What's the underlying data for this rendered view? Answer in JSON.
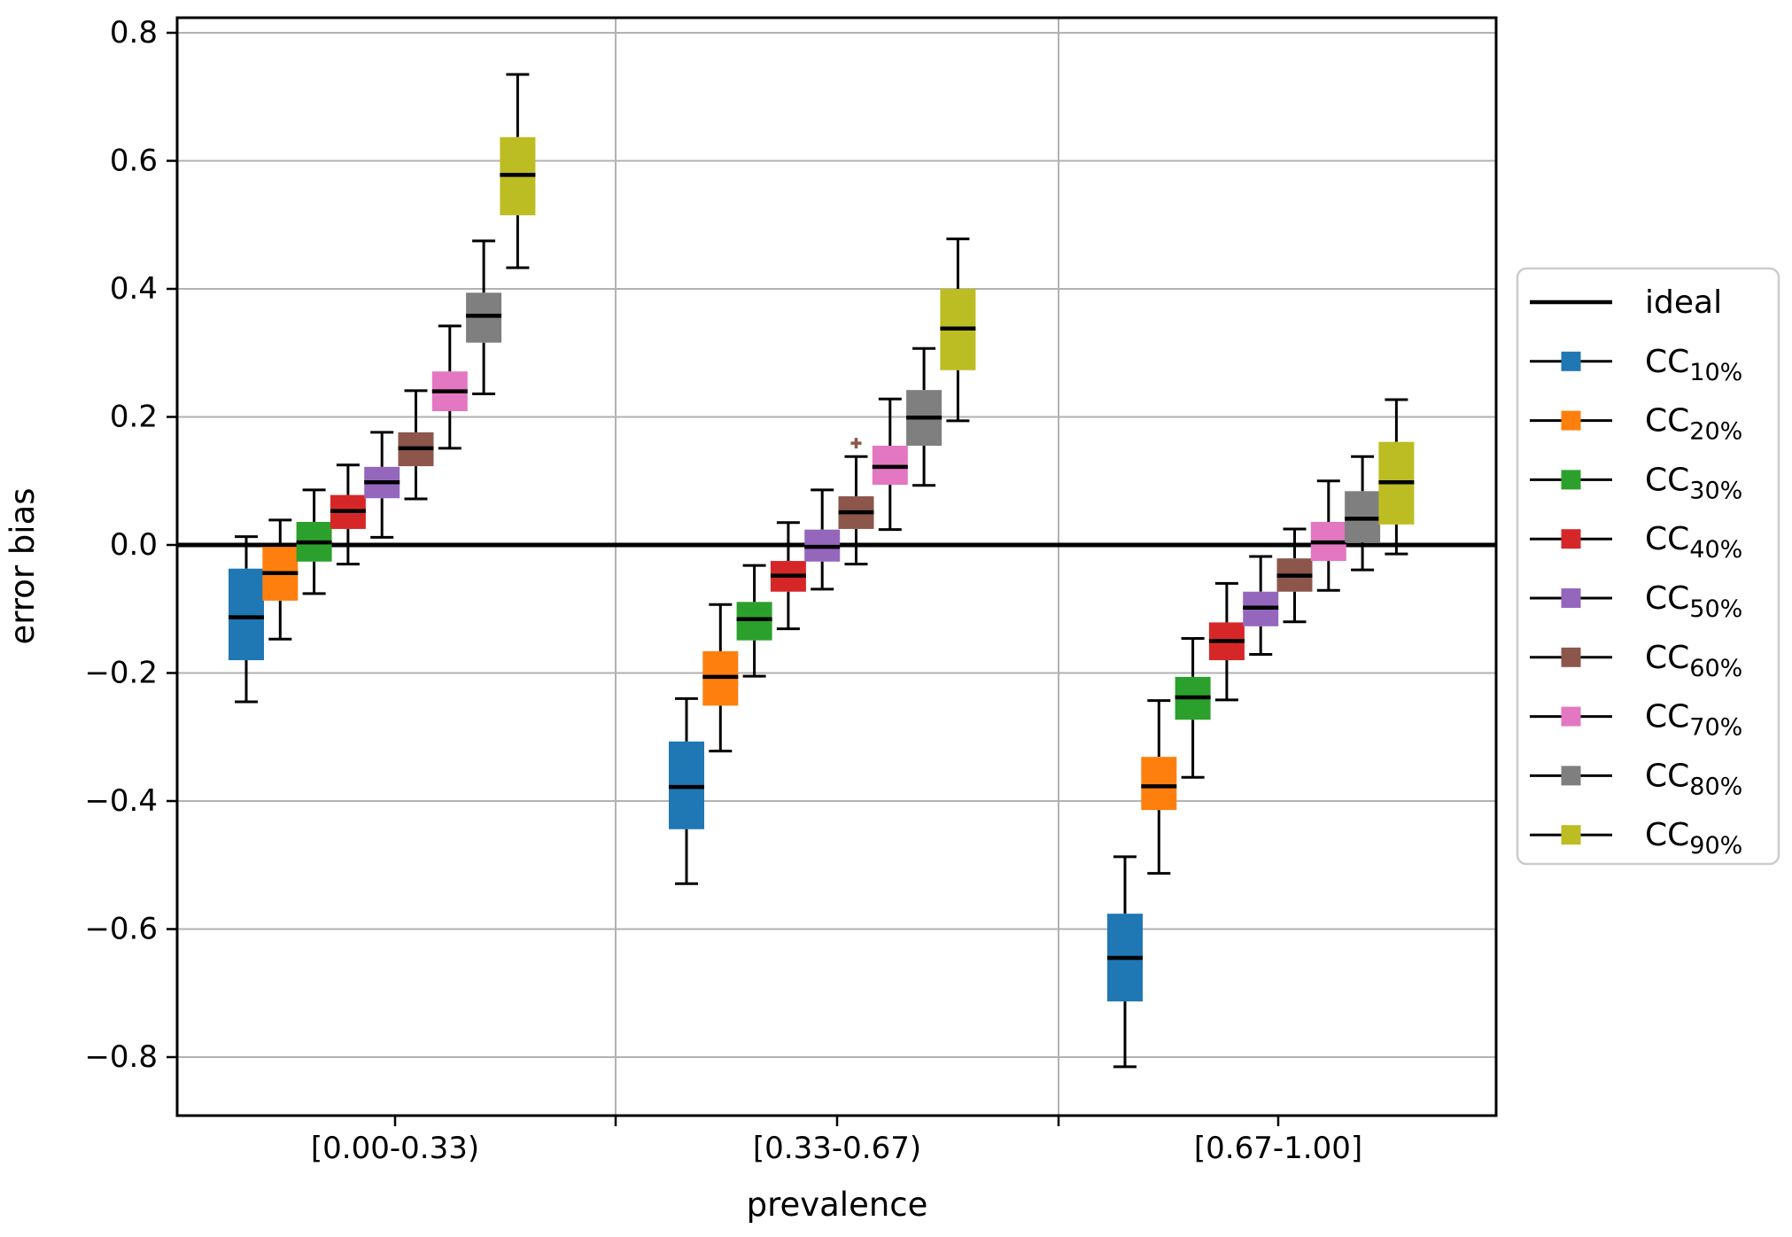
{
  "figure": {
    "background": "#ffffff",
    "grid_color": "#b2b2b2",
    "spine_color": "#000000",
    "text_color": "#000000"
  },
  "chart_data": {
    "type": "grouped_boxplot",
    "title": "",
    "xlabel": "prevalence",
    "ylabel": "error bias",
    "ylim": [
      -0.891,
      0.823
    ],
    "grid": "horizontal-on",
    "legend_position": "outside-right",
    "yticks": [
      {
        "value": 0.8,
        "label": "0.8"
      },
      {
        "value": 0.6,
        "label": "0.6"
      },
      {
        "value": 0.4,
        "label": "0.4"
      },
      {
        "value": 0.2,
        "label": "0.2"
      },
      {
        "value": 0.0,
        "label": "0.0"
      },
      {
        "value": -0.2,
        "label": "−0.2"
      },
      {
        "value": -0.4,
        "label": "−0.4"
      },
      {
        "value": -0.6,
        "label": "−0.6"
      },
      {
        "value": -0.8,
        "label": "−0.8"
      }
    ],
    "ideal_line": {
      "label": "ideal",
      "y": 0.0,
      "color": "#000000"
    },
    "categories": [
      "[0.00-0.33)",
      "[0.33-0.67)",
      "[0.67-1.00]"
    ],
    "series": [
      {
        "name": "CC10%",
        "label_main": "CC",
        "label_sub": "10%",
        "color": "#1f77b4"
      },
      {
        "name": "CC20%",
        "label_main": "CC",
        "label_sub": "20%",
        "color": "#ff7f0e"
      },
      {
        "name": "CC30%",
        "label_main": "CC",
        "label_sub": "30%",
        "color": "#2ca02c"
      },
      {
        "name": "CC40%",
        "label_main": "CC",
        "label_sub": "40%",
        "color": "#d62728"
      },
      {
        "name": "CC50%",
        "label_main": "CC",
        "label_sub": "50%",
        "color": "#9467bd"
      },
      {
        "name": "CC60%",
        "label_main": "CC",
        "label_sub": "60%",
        "color": "#8c564b"
      },
      {
        "name": "CC70%",
        "label_main": "CC",
        "label_sub": "70%",
        "color": "#e377c2"
      },
      {
        "name": "CC80%",
        "label_main": "CC",
        "label_sub": "80%",
        "color": "#7f7f7f"
      },
      {
        "name": "CC90%",
        "label_main": "CC",
        "label_sub": "90%",
        "color": "#bcbd22"
      }
    ],
    "boxes": [
      {
        "category": "[0.00-0.33)",
        "items": [
          {
            "series": "CC10%",
            "whisker_low": -0.245,
            "q1": -0.18,
            "median": -0.113,
            "q3": -0.037,
            "whisker_high": 0.013,
            "outliers": []
          },
          {
            "series": "CC20%",
            "whisker_low": -0.147,
            "q1": -0.087,
            "median": -0.044,
            "q3": -0.003,
            "whisker_high": 0.039,
            "outliers": []
          },
          {
            "series": "CC30%",
            "whisker_low": -0.076,
            "q1": -0.026,
            "median": 0.004,
            "q3": 0.036,
            "whisker_high": 0.086,
            "outliers": []
          },
          {
            "series": "CC40%",
            "whisker_low": -0.03,
            "q1": 0.025,
            "median": 0.053,
            "q3": 0.078,
            "whisker_high": 0.125,
            "outliers": []
          },
          {
            "series": "CC50%",
            "whisker_low": 0.012,
            "q1": 0.073,
            "median": 0.098,
            "q3": 0.122,
            "whisker_high": 0.176,
            "outliers": []
          },
          {
            "series": "CC60%",
            "whisker_low": 0.072,
            "q1": 0.123,
            "median": 0.151,
            "q3": 0.176,
            "whisker_high": 0.241,
            "outliers": []
          },
          {
            "series": "CC70%",
            "whisker_low": 0.151,
            "q1": 0.209,
            "median": 0.24,
            "q3": 0.271,
            "whisker_high": 0.342,
            "outliers": []
          },
          {
            "series": "CC80%",
            "whisker_low": 0.236,
            "q1": 0.316,
            "median": 0.358,
            "q3": 0.394,
            "whisker_high": 0.475,
            "outliers": []
          },
          {
            "series": "CC90%",
            "whisker_low": 0.433,
            "q1": 0.515,
            "median": 0.578,
            "q3": 0.637,
            "whisker_high": 0.735,
            "outliers": []
          }
        ]
      },
      {
        "category": "[0.33-0.67)",
        "items": [
          {
            "series": "CC10%",
            "whisker_low": -0.529,
            "q1": -0.444,
            "median": -0.378,
            "q3": -0.307,
            "whisker_high": -0.24,
            "outliers": []
          },
          {
            "series": "CC20%",
            "whisker_low": -0.322,
            "q1": -0.251,
            "median": -0.206,
            "q3": -0.166,
            "whisker_high": -0.093,
            "outliers": []
          },
          {
            "series": "CC30%",
            "whisker_low": -0.205,
            "q1": -0.149,
            "median": -0.116,
            "q3": -0.089,
            "whisker_high": -0.032,
            "outliers": []
          },
          {
            "series": "CC40%",
            "whisker_low": -0.131,
            "q1": -0.073,
            "median": -0.048,
            "q3": -0.025,
            "whisker_high": 0.035,
            "outliers": []
          },
          {
            "series": "CC50%",
            "whisker_low": -0.069,
            "q1": -0.026,
            "median": -0.003,
            "q3": 0.024,
            "whisker_high": 0.086,
            "outliers": []
          },
          {
            "series": "CC60%",
            "whisker_low": -0.03,
            "q1": 0.025,
            "median": 0.051,
            "q3": 0.076,
            "whisker_high": 0.138,
            "outliers": [
              0.159
            ]
          },
          {
            "series": "CC70%",
            "whisker_low": 0.024,
            "q1": 0.094,
            "median": 0.122,
            "q3": 0.155,
            "whisker_high": 0.228,
            "outliers": []
          },
          {
            "series": "CC80%",
            "whisker_low": 0.093,
            "q1": 0.155,
            "median": 0.199,
            "q3": 0.242,
            "whisker_high": 0.307,
            "outliers": []
          },
          {
            "series": "CC90%",
            "whisker_low": 0.194,
            "q1": 0.273,
            "median": 0.338,
            "q3": 0.4,
            "whisker_high": 0.478,
            "outliers": []
          }
        ]
      },
      {
        "category": "[0.67-1.00]",
        "items": [
          {
            "series": "CC10%",
            "whisker_low": -0.815,
            "q1": -0.713,
            "median": -0.645,
            "q3": -0.576,
            "whisker_high": -0.487,
            "outliers": []
          },
          {
            "series": "CC20%",
            "whisker_low": -0.513,
            "q1": -0.414,
            "median": -0.377,
            "q3": -0.331,
            "whisker_high": -0.243,
            "outliers": []
          },
          {
            "series": "CC30%",
            "whisker_low": -0.363,
            "q1": -0.273,
            "median": -0.238,
            "q3": -0.206,
            "whisker_high": -0.146,
            "outliers": []
          },
          {
            "series": "CC40%",
            "whisker_low": -0.242,
            "q1": -0.18,
            "median": -0.15,
            "q3": -0.121,
            "whisker_high": -0.06,
            "outliers": []
          },
          {
            "series": "CC50%",
            "whisker_low": -0.171,
            "q1": -0.127,
            "median": -0.098,
            "q3": -0.073,
            "whisker_high": -0.018,
            "outliers": []
          },
          {
            "series": "CC60%",
            "whisker_low": -0.12,
            "q1": -0.073,
            "median": -0.048,
            "q3": -0.021,
            "whisker_high": 0.025,
            "outliers": []
          },
          {
            "series": "CC70%",
            "whisker_low": -0.071,
            "q1": -0.025,
            "median": 0.004,
            "q3": 0.036,
            "whisker_high": 0.1,
            "outliers": []
          },
          {
            "series": "CC80%",
            "whisker_low": -0.039,
            "q1": 0.004,
            "median": 0.041,
            "q3": 0.084,
            "whisker_high": 0.138,
            "outliers": []
          },
          {
            "series": "CC90%",
            "whisker_low": -0.014,
            "q1": 0.032,
            "median": 0.098,
            "q3": 0.161,
            "whisker_high": 0.227,
            "outliers": []
          }
        ]
      }
    ]
  },
  "legend": {
    "entries": [
      {
        "label_main": "ideal",
        "label_sub": "",
        "type": "line",
        "color": "#000000"
      },
      {
        "label_main": "CC",
        "label_sub": "10%",
        "type": "line-marker",
        "color": "#1f77b4"
      },
      {
        "label_main": "CC",
        "label_sub": "20%",
        "type": "line-marker",
        "color": "#ff7f0e"
      },
      {
        "label_main": "CC",
        "label_sub": "30%",
        "type": "line-marker",
        "color": "#2ca02c"
      },
      {
        "label_main": "CC",
        "label_sub": "40%",
        "type": "line-marker",
        "color": "#d62728"
      },
      {
        "label_main": "CC",
        "label_sub": "50%",
        "type": "line-marker",
        "color": "#9467bd"
      },
      {
        "label_main": "CC",
        "label_sub": "60%",
        "type": "line-marker",
        "color": "#8c564b"
      },
      {
        "label_main": "CC",
        "label_sub": "70%",
        "type": "line-marker",
        "color": "#e377c2"
      },
      {
        "label_main": "CC",
        "label_sub": "80%",
        "type": "line-marker",
        "color": "#7f7f7f"
      },
      {
        "label_main": "CC",
        "label_sub": "90%",
        "type": "line-marker",
        "color": "#bcbd22"
      }
    ]
  }
}
